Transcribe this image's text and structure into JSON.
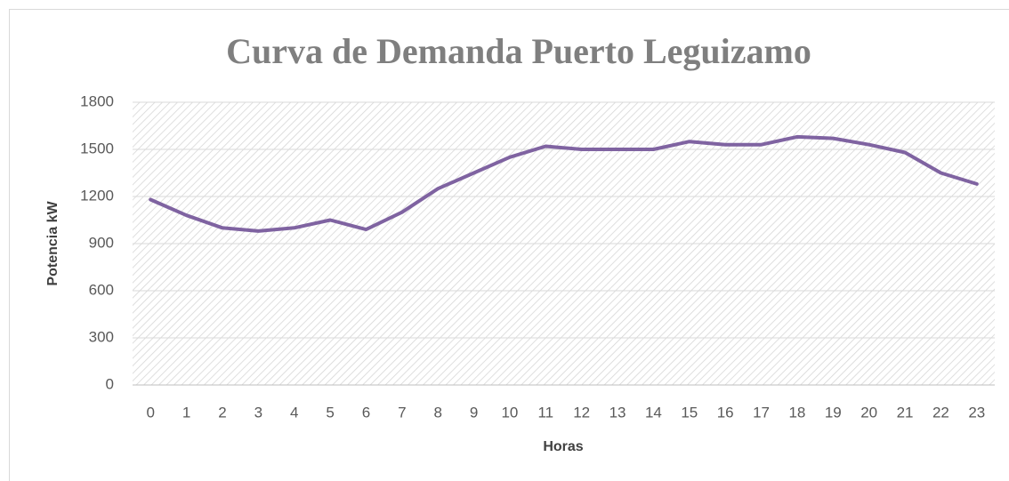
{
  "chart_data": {
    "type": "line",
    "title": "Curva de Demanda Puerto Leguizamo",
    "x_label": "Horas",
    "y_label": "Potencia kW",
    "categories": [
      "0",
      "1",
      "2",
      "3",
      "4",
      "5",
      "6",
      "7",
      "8",
      "9",
      "10",
      "11",
      "12",
      "13",
      "14",
      "15",
      "16",
      "17",
      "18",
      "19",
      "20",
      "21",
      "22",
      "23"
    ],
    "series": [
      {
        "name": "Potencia kW",
        "color": "#7f63a1",
        "values": [
          1180,
          1080,
          1000,
          980,
          1000,
          1050,
          990,
          1100,
          1250,
          1350,
          1450,
          1520,
          1500,
          1500,
          1500,
          1550,
          1530,
          1530,
          1580,
          1570,
          1530,
          1480,
          1350,
          1280
        ]
      }
    ],
    "ylim": [
      0,
      1800
    ],
    "yticks": [
      0,
      300,
      600,
      900,
      1200,
      1500,
      1800
    ],
    "grid": true
  }
}
